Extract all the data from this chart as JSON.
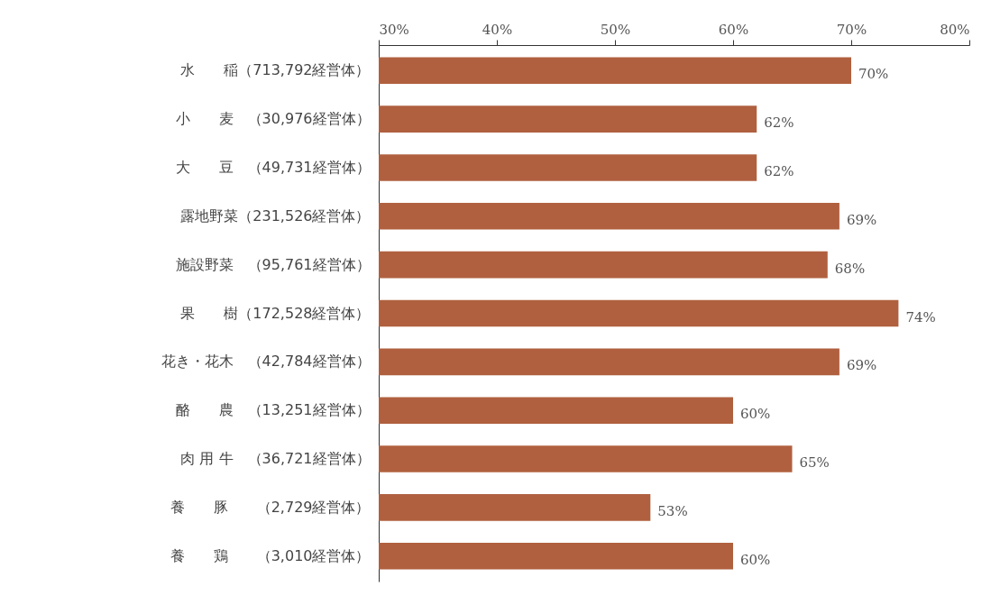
{
  "chart_data": {
    "type": "bar",
    "orientation": "horizontal",
    "categories": [
      "水　　稲（713,792経営体）",
      "小　　麦　（30,976経営体）",
      "大　　豆　（49,731経営体）",
      "露地野菜（231,526経営体）",
      "施設野菜　（95,761経営体）",
      "果　　樹（172,528経営体）",
      "花き・花木　（42,784経営体）",
      "酪　　農　（13,251経営体）",
      "肉 用 牛　（36,721経営体）",
      "養　　豚　　（2,729経営体）",
      "養　　鶏　　（3,010経営体）"
    ],
    "values": [
      70,
      62,
      62,
      69,
      68,
      74,
      69,
      60,
      65,
      53,
      60
    ],
    "value_labels": [
      "70%",
      "62%",
      "62%",
      "69%",
      "68%",
      "74%",
      "69%",
      "60%",
      "65%",
      "53%",
      "60%"
    ],
    "color": "#b0603f",
    "xlim": [
      30,
      80
    ],
    "xticks": [
      {
        "value": 30,
        "label": "30%"
      },
      {
        "value": 40,
        "label": "40%"
      },
      {
        "value": 50,
        "label": "50%"
      },
      {
        "value": 60,
        "label": "60%"
      },
      {
        "value": 70,
        "label": "70%"
      },
      {
        "value": 80,
        "label": "80%"
      }
    ],
    "grid": false
  }
}
